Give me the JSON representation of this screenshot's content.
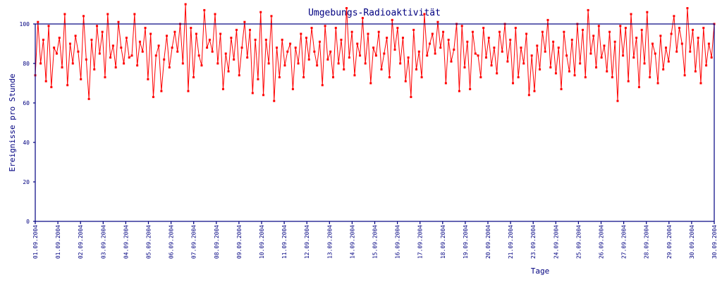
{
  "chart_data": {
    "type": "line",
    "title": "Umgebungs-Radioaktivität",
    "xlabel": "Tage",
    "ylabel": "Ereignisse pro Stunde",
    "ylim": [
      0,
      100
    ],
    "yticks": [
      0,
      20,
      40,
      60,
      80,
      100
    ],
    "xtick_labels": [
      "01.09.2004",
      "01.09.2004",
      "02.09.2004",
      "03.09.2004",
      "04.09.2004",
      "05.09.2004",
      "06.09.2004",
      "07.09.2004",
      "08.09.2004",
      "09.09.2004",
      "10.09.2004",
      "11.09.2004",
      "12.09.2004",
      "13.09.2004",
      "14.09.2004",
      "15.09.2004",
      "16.09.2004",
      "17.09.2004",
      "18.09.2004",
      "19.09.2004",
      "20.09.2004",
      "21.09.2004",
      "23.09.2004",
      "24.09.2004",
      "25.09.2004",
      "26.09.2004",
      "27.09.2004",
      "28.09.2004",
      "29.09.2004",
      "30.09.2004",
      "30.09.2004"
    ],
    "grid": false,
    "colors": {
      "line": "#ff0000",
      "axis": "#000080"
    },
    "series": [
      {
        "name": "Ereignisse pro Stunde",
        "values": [
          74,
          101,
          80,
          92,
          71,
          99,
          68,
          88,
          85,
          93,
          78,
          105,
          69,
          90,
          80,
          94,
          86,
          72,
          104,
          82,
          62,
          92,
          77,
          99,
          85,
          96,
          73,
          105,
          83,
          89,
          78,
          101,
          88,
          80,
          93,
          83,
          84,
          105,
          79,
          91,
          86,
          98,
          72,
          95,
          63,
          84,
          89,
          66,
          82,
          94,
          78,
          88,
          96,
          86,
          100,
          80,
          110,
          66,
          98,
          73,
          95,
          84,
          79,
          107,
          88,
          92,
          86,
          105,
          80,
          95,
          67,
          85,
          76,
          93,
          82,
          97,
          74,
          88,
          101,
          83,
          97,
          65,
          92,
          72,
          106,
          64,
          92,
          80,
          104,
          61,
          88,
          73,
          92,
          79,
          86,
          90,
          67,
          88,
          80,
          95,
          73,
          93,
          82,
          98,
          86,
          79,
          91,
          69,
          99,
          82,
          86,
          73,
          98,
          80,
          92,
          77,
          108,
          83,
          96,
          74,
          90,
          84,
          103,
          80,
          95,
          70,
          88,
          84,
          96,
          77,
          85,
          93,
          73,
          102,
          87,
          98,
          80,
          93,
          71,
          83,
          63,
          97,
          77,
          86,
          73,
          105,
          84,
          90,
          95,
          85,
          101,
          88,
          96,
          70,
          92,
          81,
          87,
          100,
          66,
          99,
          78,
          91,
          67,
          96,
          85,
          84,
          73,
          98,
          83,
          93,
          79,
          88,
          75,
          96,
          86,
          100,
          81,
          92,
          70,
          98,
          73,
          88,
          80,
          95,
          64,
          84,
          66,
          89,
          77,
          96,
          86,
          102,
          78,
          91,
          75,
          88,
          67,
          96,
          84,
          76,
          92,
          74,
          100,
          80,
          97,
          73,
          107,
          85,
          94,
          78,
          99,
          83,
          89,
          76,
          96,
          73,
          91,
          61,
          99,
          84,
          98,
          71,
          105,
          83,
          93,
          68,
          97,
          80,
          106,
          73,
          90,
          85,
          70,
          94,
          77,
          88,
          81,
          95,
          104,
          86,
          98,
          90,
          74,
          108,
          86,
          97,
          76,
          93,
          70,
          98,
          79,
          90,
          83,
          100
        ]
      }
    ]
  }
}
